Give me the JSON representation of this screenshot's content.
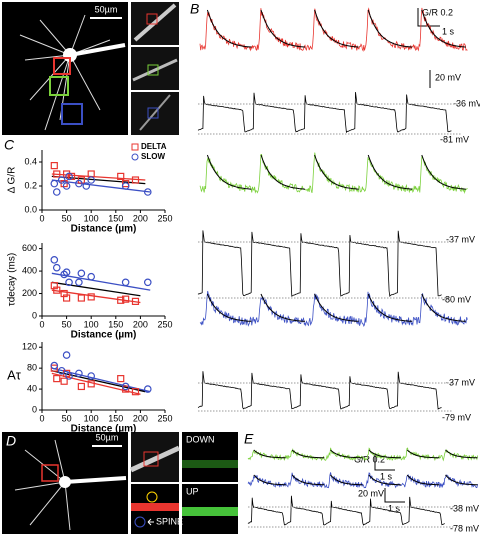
{
  "panel_labels": [
    "A",
    "B",
    "C",
    "D",
    "E"
  ],
  "image_scale_bars": [
    "50µm",
    "50µm"
  ],
  "image_labels": {
    "down": "DOWN",
    "up": "UP",
    "spine": "SPINE"
  },
  "trace_scale_bars": {
    "b_ratio": "G/R 0.2",
    "b_time": "1 s",
    "b_voltage": "20 mV",
    "e_ratio": "G/R 0.2",
    "e_time_ratio": "1 s",
    "e_voltage": "20 mV",
    "e_time_voltage": "1 s"
  },
  "voltage_labels": [
    "-36 mV",
    "-81 mV",
    "-37 mV",
    "-80 mV",
    "-37 mV",
    "-79 mV",
    "-38 mV",
    "-78 mV"
  ],
  "chart_data": [
    {
      "type": "scatter",
      "xlabel": "Distance (µm)",
      "ylabel": "Δ G/R",
      "xlim": [
        0,
        250
      ],
      "xticks": [
        0,
        50,
        100,
        150,
        200,
        250
      ],
      "ylim": [
        0,
        0.5
      ],
      "yticks": [
        {
          "value": 0,
          "label": "0.0"
        },
        0.2,
        0.4
      ],
      "legend": "top-right",
      "series": [
        {
          "name": "DELTA",
          "color": "#e8352f",
          "marker": "square",
          "x": [
            25,
            30,
            45,
            50,
            60,
            80,
            100,
            160,
            170,
            190
          ],
          "values": [
            0.37,
            0.3,
            0.22,
            0.3,
            0.28,
            0.25,
            0.3,
            0.28,
            0.22,
            0.25
          ]
        },
        {
          "name": "SLOW",
          "color": "#3b4fc4",
          "marker": "circle",
          "x": [
            25,
            30,
            40,
            50,
            55,
            75,
            90,
            100,
            170,
            215
          ],
          "values": [
            0.22,
            0.15,
            0.25,
            0.2,
            0.28,
            0.22,
            0.2,
            0.25,
            0.2,
            0.15
          ]
        }
      ],
      "trends": [
        {
          "color": "#e8352f",
          "x": [
            20,
            210
          ],
          "values": [
            0.3,
            0.25
          ]
        },
        {
          "color": "#000000",
          "x": [
            20,
            210
          ],
          "values": [
            0.28,
            0.22
          ]
        },
        {
          "color": "#3b4fc4",
          "x": [
            20,
            220
          ],
          "values": [
            0.25,
            0.15
          ]
        }
      ]
    },
    {
      "type": "scatter",
      "xlabel": "Distance (µm)",
      "ylabel": "τdecay (ms)",
      "xlim": [
        0,
        250
      ],
      "xticks": [
        0,
        50,
        100,
        150,
        200,
        250
      ],
      "ylim": [
        0,
        650
      ],
      "yticks": [
        0,
        200,
        400,
        600
      ],
      "series": [
        {
          "color": "#e8352f",
          "marker": "square",
          "x": [
            25,
            30,
            45,
            50,
            80,
            100,
            160,
            170,
            190
          ],
          "values": [
            270,
            230,
            200,
            160,
            160,
            170,
            140,
            150,
            130
          ]
        },
        {
          "color": "#3b4fc4",
          "marker": "circle",
          "x": [
            25,
            30,
            45,
            50,
            55,
            75,
            80,
            100,
            170,
            215
          ],
          "values": [
            500,
            430,
            370,
            390,
            300,
            300,
            380,
            350,
            300,
            300
          ]
        }
      ],
      "trends": [
        {
          "color": "#3b4fc4",
          "x": [
            20,
            220
          ],
          "values": [
            380,
            230
          ]
        },
        {
          "color": "#000000",
          "x": [
            20,
            200
          ],
          "values": [
            300,
            180
          ]
        },
        {
          "color": "#e8352f",
          "x": [
            20,
            200
          ],
          "values": [
            230,
            120
          ]
        }
      ]
    },
    {
      "type": "scatter",
      "xlabel": "Distance (µm)",
      "ylabel": "Aτ",
      "xlim": [
        0,
        250
      ],
      "xticks": [
        0,
        50,
        100,
        150,
        200,
        250
      ],
      "ylim": [
        0,
        130
      ],
      "yticks": [
        0,
        40,
        80,
        120
      ],
      "series": [
        {
          "color": "#e8352f",
          "marker": "square",
          "x": [
            25,
            30,
            45,
            50,
            80,
            100,
            160,
            170,
            190
          ],
          "values": [
            80,
            60,
            55,
            70,
            45,
            50,
            60,
            40,
            35
          ]
        },
        {
          "color": "#3b4fc4",
          "marker": "circle",
          "x": [
            25,
            40,
            50,
            55,
            75,
            100,
            170,
            215
          ],
          "values": [
            85,
            75,
            105,
            65,
            70,
            65,
            45,
            40
          ]
        }
      ],
      "trends": [
        {
          "color": "#3b4fc4",
          "x": [
            20,
            220
          ],
          "values": [
            80,
            35
          ]
        },
        {
          "color": "#000000",
          "x": [
            20,
            210
          ],
          "values": [
            75,
            35
          ]
        },
        {
          "color": "#e8352f",
          "x": [
            20,
            200
          ],
          "values": [
            70,
            30
          ]
        }
      ]
    }
  ]
}
